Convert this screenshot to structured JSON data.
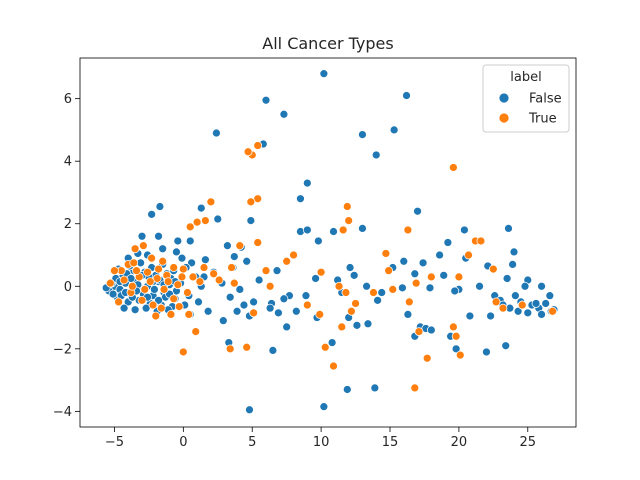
{
  "chart_data": {
    "type": "scatter",
    "title": "All Cancer Types",
    "xlabel": "",
    "ylabel": "",
    "xlim": [
      -7.5,
      28.5
    ],
    "ylim": [
      -4.5,
      7.3
    ],
    "xticks": [
      -5,
      0,
      5,
      10,
      15,
      20,
      25
    ],
    "yticks": [
      -4,
      -2,
      0,
      2,
      4,
      6
    ],
    "grid": false,
    "legend": {
      "title": "label",
      "placement": "top-right"
    },
    "series": [
      {
        "name": "False",
        "color": "#1f77b4",
        "points": [
          [
            10.2,
            6.8
          ],
          [
            16.2,
            6.1
          ],
          [
            6.0,
            5.95
          ],
          [
            7.3,
            5.5
          ],
          [
            15.3,
            5.0
          ],
          [
            13.0,
            4.85
          ],
          [
            2.4,
            4.9
          ],
          [
            5.8,
            4.55
          ],
          [
            14.0,
            4.2
          ],
          [
            9.0,
            3.3
          ],
          [
            17.0,
            2.4
          ],
          [
            8.5,
            2.8
          ],
          [
            2.5,
            2.15
          ],
          [
            4.9,
            2.1
          ],
          [
            -1.7,
            2.55
          ],
          [
            -2.3,
            2.3
          ],
          [
            1.3,
            2.5
          ],
          [
            13.0,
            1.85
          ],
          [
            8.5,
            1.75
          ],
          [
            9.0,
            1.8
          ],
          [
            10.9,
            1.75
          ],
          [
            20.4,
            1.8
          ],
          [
            23.6,
            1.85
          ],
          [
            19.2,
            1.4
          ],
          [
            -0.4,
            1.45
          ],
          [
            0.5,
            1.45
          ],
          [
            -3.0,
            1.6
          ],
          [
            -1.8,
            1.6
          ],
          [
            3.2,
            1.3
          ],
          [
            4.2,
            1.25
          ],
          [
            9.8,
            1.45
          ],
          [
            16.0,
            0.8
          ],
          [
            17.4,
            0.75
          ],
          [
            18.6,
            1.0
          ],
          [
            20.5,
            0.9
          ],
          [
            24.0,
            1.1
          ],
          [
            22.1,
            0.65
          ],
          [
            15.2,
            0.6
          ],
          [
            12.4,
            0.35
          ],
          [
            11.2,
            0.2
          ],
          [
            16.8,
            0.4
          ],
          [
            18.9,
            0.35
          ],
          [
            20.0,
            -0.1
          ],
          [
            21.5,
            0.0
          ],
          [
            23.5,
            0.25
          ],
          [
            23.9,
            0.7
          ],
          [
            25.0,
            0.2
          ],
          [
            26.0,
            0.0
          ],
          [
            6.8,
            0.5
          ],
          [
            9.6,
            0.25
          ],
          [
            13.3,
            0.0
          ],
          [
            14.4,
            -0.2
          ],
          [
            15.9,
            -0.05
          ],
          [
            17.9,
            -0.05
          ],
          [
            19.7,
            -0.15
          ],
          [
            22.6,
            -0.3
          ],
          [
            23.0,
            -0.45
          ],
          [
            24.5,
            -0.5
          ],
          [
            25.3,
            -0.6
          ],
          [
            25.8,
            -0.7
          ],
          [
            26.3,
            -0.55
          ],
          [
            26.7,
            -0.8
          ],
          [
            26.0,
            -0.9
          ],
          [
            25.0,
            -0.85
          ],
          [
            24.3,
            -0.8
          ],
          [
            23.7,
            -0.7
          ],
          [
            22.3,
            -0.95
          ],
          [
            24.6,
            -0.6
          ],
          [
            26.6,
            -0.3
          ],
          [
            25.6,
            -0.55
          ],
          [
            26.9,
            -0.75
          ],
          [
            23.2,
            -0.6
          ],
          [
            24.1,
            -0.3
          ],
          [
            24.8,
            0.0
          ],
          [
            22.0,
            -2.1
          ],
          [
            23.4,
            -1.9
          ],
          [
            16.8,
            -1.6
          ],
          [
            17.2,
            -1.3
          ],
          [
            17.6,
            -1.35
          ],
          [
            18.0,
            -1.4
          ],
          [
            16.3,
            -0.9
          ],
          [
            19.8,
            -2.0
          ],
          [
            20.8,
            -0.95
          ],
          [
            19.4,
            -1.6
          ],
          [
            11.9,
            -3.3
          ],
          [
            13.9,
            -3.25
          ],
          [
            10.2,
            -3.85
          ],
          [
            4.8,
            -3.95
          ],
          [
            6.5,
            -2.05
          ],
          [
            3.3,
            -1.8
          ],
          [
            10.8,
            -1.8
          ],
          [
            13.4,
            -1.2
          ],
          [
            12.6,
            -1.25
          ],
          [
            12.0,
            -1.0
          ],
          [
            8.2,
            -0.8
          ],
          [
            7.5,
            -1.3
          ],
          [
            9.7,
            -1.0
          ],
          [
            6.4,
            -0.55
          ],
          [
            6.9,
            -0.85
          ],
          [
            4.4,
            -0.6
          ],
          [
            3.9,
            -0.8
          ],
          [
            4.8,
            -0.95
          ],
          [
            5.1,
            -0.5
          ],
          [
            7.7,
            -0.3
          ],
          [
            2.9,
            -1.1
          ],
          [
            1.8,
            -0.8
          ],
          [
            3.4,
            -0.35
          ],
          [
            4.1,
            -0.1
          ],
          [
            2.8,
            0.1
          ],
          [
            1.3,
            0.0
          ],
          [
            0.4,
            -0.3
          ],
          [
            0.9,
            0.3
          ],
          [
            2.2,
            0.45
          ],
          [
            3.6,
            0.6
          ],
          [
            4.6,
            0.8
          ],
          [
            3.7,
            0.95
          ],
          [
            1.6,
            0.85
          ],
          [
            -0.1,
            0.9
          ],
          [
            0.6,
            0.75
          ],
          [
            7.3,
            -0.4
          ],
          [
            8.9,
            -0.3
          ],
          [
            11.5,
            -0.2
          ],
          [
            14.1,
            -0.45
          ],
          [
            12.1,
            0.6
          ],
          [
            5.5,
            0.2
          ],
          [
            6.3,
            -0.7
          ],
          [
            -5.0,
            0.0
          ],
          [
            -4.6,
            -0.1
          ],
          [
            -4.2,
            0.1
          ],
          [
            -3.8,
            -0.2
          ],
          [
            -3.4,
            0.2
          ],
          [
            -3.0,
            -0.1
          ],
          [
            -2.6,
            0.0
          ],
          [
            -2.2,
            -0.3
          ],
          [
            -1.8,
            0.15
          ],
          [
            -1.4,
            -0.2
          ],
          [
            -1.0,
            0.05
          ],
          [
            -0.6,
            -0.4
          ],
          [
            -4.8,
            -0.35
          ],
          [
            -4.4,
            0.3
          ],
          [
            -4.0,
            -0.5
          ],
          [
            -3.6,
            0.5
          ],
          [
            -3.2,
            -0.45
          ],
          [
            -2.8,
            0.45
          ],
          [
            -2.4,
            -0.55
          ],
          [
            -2.0,
            0.35
          ],
          [
            -1.6,
            -0.6
          ],
          [
            -1.2,
            0.4
          ],
          [
            -0.8,
            -0.65
          ],
          [
            -5.2,
            0.1
          ],
          [
            -5.4,
            -0.15
          ],
          [
            -4.9,
            0.25
          ],
          [
            -4.5,
            -0.3
          ],
          [
            -4.1,
            0.4
          ],
          [
            -3.7,
            -0.35
          ],
          [
            -3.3,
            0.05
          ],
          [
            -2.9,
            -0.25
          ],
          [
            -2.5,
            0.3
          ],
          [
            -2.1,
            -0.1
          ],
          [
            -1.7,
            0.2
          ],
          [
            -1.3,
            -0.35
          ],
          [
            -0.9,
            0.25
          ],
          [
            -0.5,
            -0.15
          ],
          [
            -0.2,
            0.1
          ],
          [
            -4.7,
            0.55
          ],
          [
            -3.9,
            0.65
          ],
          [
            -3.1,
            0.75
          ],
          [
            -2.3,
            0.6
          ],
          [
            -1.5,
            0.7
          ],
          [
            -0.7,
            0.5
          ],
          [
            -4.3,
            -0.7
          ],
          [
            -3.5,
            -0.75
          ],
          [
            -2.7,
            -0.7
          ],
          [
            -1.9,
            -0.8
          ],
          [
            -1.1,
            -0.75
          ],
          [
            -4.0,
            0.9
          ],
          [
            -3.3,
            1.05
          ],
          [
            -2.6,
            1.0
          ],
          [
            -1.5,
            1.2
          ],
          [
            -0.5,
            1.1
          ],
          [
            0.2,
            0.6
          ],
          [
            0.1,
            -0.6
          ],
          [
            0.5,
            -0.9
          ],
          [
            1.1,
            -0.5
          ],
          [
            1.5,
            0.3
          ],
          [
            -5.6,
            -0.05
          ],
          [
            -5.1,
            -0.25
          ],
          [
            -4.6,
            0.15
          ],
          [
            -3.8,
            0.25
          ],
          [
            -3.0,
            0.35
          ],
          [
            -2.2,
            0.15
          ],
          [
            -1.4,
            0.05
          ],
          [
            -0.6,
            0.15
          ],
          [
            -4.2,
            -0.2
          ],
          [
            -3.4,
            -0.15
          ],
          [
            -2.6,
            -0.35
          ],
          [
            -1.8,
            -0.45
          ],
          [
            -1.0,
            -0.25
          ]
        ]
      },
      {
        "name": "True",
        "color": "#ff7f0e",
        "points": [
          [
            5.0,
            4.2
          ],
          [
            4.7,
            4.3
          ],
          [
            5.4,
            4.5
          ],
          [
            19.6,
            3.8
          ],
          [
            5.4,
            2.8
          ],
          [
            4.9,
            2.7
          ],
          [
            2.0,
            2.7
          ],
          [
            11.9,
            2.55
          ],
          [
            12.0,
            2.1
          ],
          [
            1.0,
            2.05
          ],
          [
            1.6,
            2.1
          ],
          [
            0.5,
            1.9
          ],
          [
            11.6,
            1.8
          ],
          [
            16.3,
            1.8
          ],
          [
            21.2,
            1.45
          ],
          [
            21.6,
            1.45
          ],
          [
            -2.9,
            1.3
          ],
          [
            -3.5,
            1.2
          ],
          [
            4.1,
            1.3
          ],
          [
            5.4,
            1.4
          ],
          [
            20.7,
            1.0
          ],
          [
            14.7,
            1.05
          ],
          [
            8.0,
            1.0
          ],
          [
            7.5,
            0.8
          ],
          [
            10.0,
            0.45
          ],
          [
            6.0,
            0.5
          ],
          [
            3.5,
            0.6
          ],
          [
            -4.0,
            0.7
          ],
          [
            -4.5,
            0.5
          ],
          [
            -3.6,
            0.75
          ],
          [
            -2.3,
            0.9
          ],
          [
            -1.5,
            0.8
          ],
          [
            -0.7,
            0.6
          ],
          [
            0.0,
            0.55
          ],
          [
            -5.0,
            0.5
          ],
          [
            2.2,
            0.4
          ],
          [
            2.6,
            0.2
          ],
          [
            11.3,
            0.0
          ],
          [
            11.8,
            -0.2
          ],
          [
            9.0,
            -0.6
          ],
          [
            12.5,
            -0.55
          ],
          [
            16.9,
            0.1
          ],
          [
            18.0,
            0.3
          ],
          [
            20.0,
            0.3
          ],
          [
            22.5,
            0.55
          ],
          [
            16.4,
            -0.5
          ],
          [
            14.9,
            0.5
          ],
          [
            15.2,
            -0.1
          ],
          [
            24.6,
            -0.6
          ],
          [
            23.2,
            -0.7
          ],
          [
            26.8,
            -0.8
          ],
          [
            22.7,
            -0.5
          ],
          [
            17.1,
            -1.45
          ],
          [
            17.7,
            -2.3
          ],
          [
            19.6,
            -1.3
          ],
          [
            19.8,
            -1.6
          ],
          [
            20.1,
            -2.2
          ],
          [
            9.9,
            -0.9
          ],
          [
            11.5,
            -1.3
          ],
          [
            10.9,
            -2.55
          ],
          [
            10.3,
            -1.95
          ],
          [
            16.8,
            -3.25
          ],
          [
            12.2,
            -0.8
          ],
          [
            13.8,
            -0.2
          ],
          [
            4.6,
            -1.95
          ],
          [
            3.4,
            -2.0
          ],
          [
            0.0,
            -2.1
          ],
          [
            0.9,
            -1.45
          ],
          [
            5.1,
            -0.85
          ],
          [
            6.3,
            0.0
          ],
          [
            3.7,
            0.1
          ],
          [
            -3.8,
            -0.2
          ],
          [
            -3.0,
            -0.45
          ],
          [
            -2.2,
            -0.6
          ],
          [
            -1.4,
            -0.1
          ],
          [
            -0.7,
            -0.4
          ],
          [
            -4.7,
            -0.5
          ],
          [
            -3.2,
            0.3
          ],
          [
            -2.6,
            0.45
          ],
          [
            -1.9,
            0.25
          ],
          [
            -1.2,
            0.35
          ],
          [
            -0.4,
            0.05
          ],
          [
            0.3,
            -0.2
          ],
          [
            0.7,
            0.3
          ],
          [
            -4.3,
            0.2
          ],
          [
            -2.8,
            -0.1
          ],
          [
            -1.6,
            -0.7
          ],
          [
            -0.9,
            -0.9
          ],
          [
            -2.0,
            -0.95
          ],
          [
            -0.3,
            -0.65
          ],
          [
            0.4,
            -0.9
          ],
          [
            1.2,
            0.15
          ],
          [
            -5.3,
            0.1
          ],
          [
            -3.4,
            0.5
          ],
          [
            -2.4,
            0.15
          ],
          [
            -1.1,
            0.15
          ],
          [
            -0.1,
            0.3
          ],
          [
            1.5,
            0.6
          ],
          [
            -3.7,
            0.0
          ],
          [
            -1.8,
            0.55
          ]
        ]
      }
    ]
  }
}
